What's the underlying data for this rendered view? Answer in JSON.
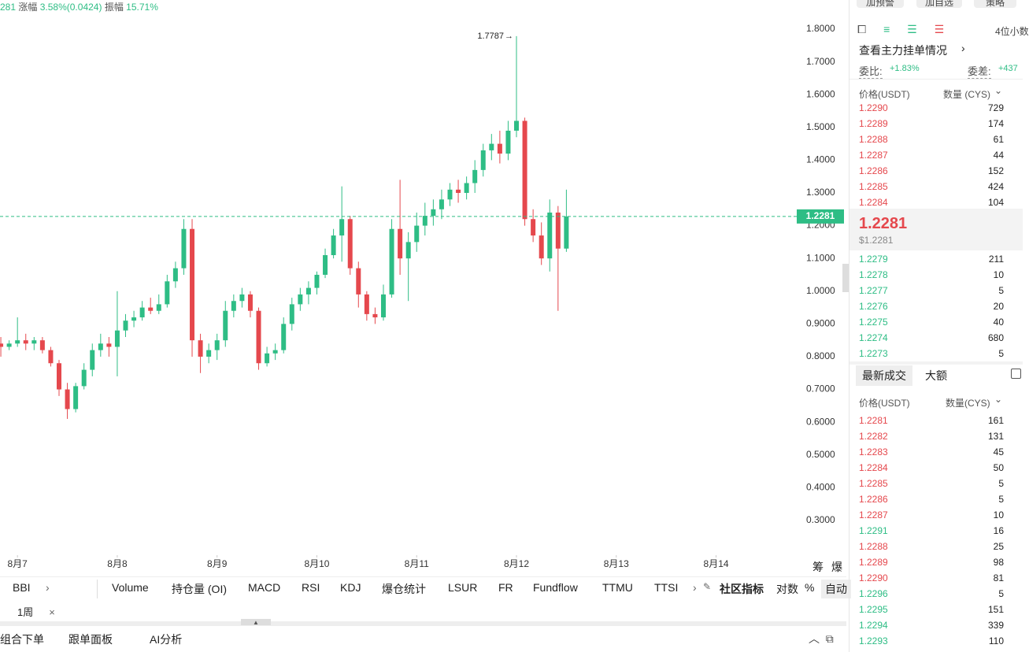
{
  "header": {
    "price_tail": "281",
    "change_label": "涨幅",
    "change": "3.58%(0.0424)",
    "amp_label": "振幅",
    "amp": "15.71%"
  },
  "chart_data": {
    "type": "candlestick",
    "up_color": "#2ebd85",
    "down_color": "#e5484d",
    "xlim": [
      -0.1,
      95.7
    ],
    "ylim": [
      0.194,
      1.889
    ],
    "xticks": [
      {
        "value": 2,
        "label": "8月7"
      },
      {
        "value": 14,
        "label": "8月8"
      },
      {
        "value": 26,
        "label": "8月9"
      },
      {
        "value": 38,
        "label": "8月10"
      },
      {
        "value": 50,
        "label": "8月11"
      },
      {
        "value": 62,
        "label": "8月12"
      },
      {
        "value": 74,
        "label": "8月13"
      },
      {
        "value": 86,
        "label": "8月14"
      }
    ],
    "yticks": [
      {
        "value": 1.8,
        "label": "1.8000"
      },
      {
        "value": 1.7,
        "label": "1.7000"
      },
      {
        "value": 1.6,
        "label": "1.6000"
      },
      {
        "value": 1.5,
        "label": "1.5000"
      },
      {
        "value": 1.4,
        "label": "1.4000"
      },
      {
        "value": 1.3,
        "label": "1.3000"
      },
      {
        "value": 1.2,
        "label": "1.2000"
      },
      {
        "value": 1.1,
        "label": "1.1000"
      },
      {
        "value": 1.0,
        "label": "1.0000"
      },
      {
        "value": 0.9,
        "label": "0.9000"
      },
      {
        "value": 0.8,
        "label": "0.8000"
      },
      {
        "value": 0.7,
        "label": "0.7000"
      },
      {
        "value": 0.6,
        "label": "0.6000"
      },
      {
        "value": 0.5,
        "label": "0.5000"
      },
      {
        "value": 0.4,
        "label": "0.4000"
      },
      {
        "value": 0.3,
        "label": "0.3000"
      }
    ],
    "last_price": 1.2281,
    "max_index": 62,
    "ohlc": [
      [
        0.84,
        0.86,
        0.8,
        0.83
      ],
      [
        0.83,
        0.85,
        0.82,
        0.84
      ],
      [
        0.84,
        0.92,
        0.83,
        0.85
      ],
      [
        0.85,
        0.87,
        0.82,
        0.84
      ],
      [
        0.84,
        0.86,
        0.82,
        0.85
      ],
      [
        0.85,
        0.86,
        0.81,
        0.82
      ],
      [
        0.82,
        0.83,
        0.77,
        0.78
      ],
      [
        0.78,
        0.79,
        0.68,
        0.7
      ],
      [
        0.7,
        0.72,
        0.61,
        0.64
      ],
      [
        0.64,
        0.72,
        0.63,
        0.71
      ],
      [
        0.71,
        0.78,
        0.7,
        0.76
      ],
      [
        0.76,
        0.84,
        0.74,
        0.82
      ],
      [
        0.82,
        0.87,
        0.8,
        0.84
      ],
      [
        0.84,
        0.86,
        0.8,
        0.83
      ],
      [
        0.83,
        1.0,
        0.74,
        0.88
      ],
      [
        0.88,
        0.93,
        0.86,
        0.91
      ],
      [
        0.91,
        0.94,
        0.89,
        0.92
      ],
      [
        0.92,
        0.97,
        0.91,
        0.95
      ],
      [
        0.95,
        0.98,
        0.93,
        0.94
      ],
      [
        0.94,
        0.99,
        0.93,
        0.96
      ],
      [
        0.96,
        1.05,
        0.95,
        1.03
      ],
      [
        1.03,
        1.09,
        1.01,
        1.07
      ],
      [
        1.07,
        1.22,
        1.05,
        1.19
      ],
      [
        1.19,
        1.22,
        0.8,
        0.85
      ],
      [
        0.85,
        0.87,
        0.75,
        0.8
      ],
      [
        0.8,
        0.84,
        0.78,
        0.82
      ],
      [
        0.82,
        0.87,
        0.79,
        0.85
      ],
      [
        0.85,
        0.97,
        0.83,
        0.94
      ],
      [
        0.94,
        0.99,
        0.92,
        0.97
      ],
      [
        0.97,
        1.01,
        0.95,
        0.99
      ],
      [
        0.99,
        1.0,
        0.92,
        0.94
      ],
      [
        0.94,
        0.95,
        0.76,
        0.78
      ],
      [
        0.78,
        0.83,
        0.77,
        0.81
      ],
      [
        0.81,
        0.84,
        0.79,
        0.82
      ],
      [
        0.82,
        0.92,
        0.81,
        0.9
      ],
      [
        0.9,
        0.98,
        0.88,
        0.96
      ],
      [
        0.96,
        1.01,
        0.94,
        0.99
      ],
      [
        0.99,
        1.03,
        0.96,
        1.01
      ],
      [
        1.01,
        1.06,
        0.99,
        1.05
      ],
      [
        1.05,
        1.13,
        1.04,
        1.11
      ],
      [
        1.11,
        1.19,
        1.1,
        1.17
      ],
      [
        1.17,
        1.32,
        1.09,
        1.22
      ],
      [
        1.22,
        1.23,
        1.05,
        1.07
      ],
      [
        1.07,
        1.09,
        0.95,
        0.99
      ],
      [
        0.99,
        1.0,
        0.91,
        0.93
      ],
      [
        0.93,
        0.95,
        0.9,
        0.92
      ],
      [
        0.92,
        1.02,
        0.91,
        0.99
      ],
      [
        0.99,
        1.22,
        0.98,
        1.19
      ],
      [
        1.19,
        1.34,
        1.05,
        1.1
      ],
      [
        1.1,
        1.18,
        0.97,
        1.15
      ],
      [
        1.15,
        1.24,
        1.12,
        1.2
      ],
      [
        1.2,
        1.27,
        1.17,
        1.23
      ],
      [
        1.23,
        1.28,
        1.2,
        1.25
      ],
      [
        1.25,
        1.31,
        1.22,
        1.28
      ],
      [
        1.28,
        1.33,
        1.26,
        1.31
      ],
      [
        1.31,
        1.34,
        1.27,
        1.3
      ],
      [
        1.3,
        1.35,
        1.28,
        1.33
      ],
      [
        1.33,
        1.4,
        1.3,
        1.37
      ],
      [
        1.37,
        1.45,
        1.35,
        1.43
      ],
      [
        1.43,
        1.48,
        1.4,
        1.45
      ],
      [
        1.45,
        1.49,
        1.39,
        1.42
      ],
      [
        1.42,
        1.52,
        1.4,
        1.49
      ],
      [
        1.49,
        1.7787,
        1.47,
        1.52
      ],
      [
        1.52,
        1.53,
        1.2,
        1.22
      ],
      [
        1.22,
        1.25,
        1.15,
        1.17
      ],
      [
        1.17,
        1.21,
        1.08,
        1.1
      ],
      [
        1.1,
        1.28,
        1.06,
        1.24
      ],
      [
        1.24,
        1.26,
        0.94,
        1.13
      ],
      [
        1.13,
        1.31,
        1.12,
        1.2281
      ]
    ]
  },
  "chart_side": [
    "筹",
    "爆"
  ],
  "indicator_tabs": [
    "BBI",
    "Volume",
    "持仓量 (OI)",
    "MACD",
    "RSI",
    "KDJ",
    "爆仓统计",
    "LSUR",
    "FR",
    "Fundflow",
    "TTMU",
    "TTSI",
    "社区指标",
    "对数",
    "%",
    "自动"
  ],
  "period_tab": "1周",
  "bottom_tabs": [
    "组合下单",
    "跟单面板",
    "AI分析"
  ],
  "panel": {
    "buttons": [
      "加预警",
      "加自选",
      "策略"
    ],
    "decimals": "4位小数",
    "main_orders": "查看主力挂单情况",
    "ratio_label": "委比:",
    "ratio": "+1.83%",
    "diff_label": "委差:",
    "diff": "+437",
    "price_header": "价格(USDT)",
    "qty_header": "数量 (CYS)",
    "asks": [
      {
        "price": "1.2290",
        "qty": "729"
      },
      {
        "price": "1.2289",
        "qty": "174"
      },
      {
        "price": "1.2288",
        "qty": "61"
      },
      {
        "price": "1.2287",
        "qty": "44"
      },
      {
        "price": "1.2286",
        "qty": "152"
      },
      {
        "price": "1.2285",
        "qty": "424"
      },
      {
        "price": "1.2284",
        "qty": "104"
      }
    ],
    "mid": "1.2281",
    "mid_usd": "$1.2281",
    "bids": [
      {
        "price": "1.2279",
        "qty": "211"
      },
      {
        "price": "1.2278",
        "qty": "10"
      },
      {
        "price": "1.2277",
        "qty": "5"
      },
      {
        "price": "1.2276",
        "qty": "20"
      },
      {
        "price": "1.2275",
        "qty": "40"
      },
      {
        "price": "1.2274",
        "qty": "680"
      },
      {
        "price": "1.2273",
        "qty": "5"
      }
    ],
    "trade_tabs": [
      "最新成交",
      "大额"
    ],
    "trade_price_header": "价格(USDT)",
    "trade_qty_header": "数量(CYS)",
    "trades": [
      {
        "price": "1.2281",
        "qty": "161",
        "color": "#e5484d"
      },
      {
        "price": "1.2282",
        "qty": "131",
        "color": "#e5484d"
      },
      {
        "price": "1.2283",
        "qty": "45",
        "color": "#e5484d"
      },
      {
        "price": "1.2284",
        "qty": "50",
        "color": "#e5484d"
      },
      {
        "price": "1.2285",
        "qty": "5",
        "color": "#e5484d"
      },
      {
        "price": "1.2286",
        "qty": "5",
        "color": "#e5484d"
      },
      {
        "price": "1.2287",
        "qty": "10",
        "color": "#e5484d"
      },
      {
        "price": "1.2291",
        "qty": "16",
        "color": "#2ebd85"
      },
      {
        "price": "1.2288",
        "qty": "25",
        "color": "#e5484d"
      },
      {
        "price": "1.2289",
        "qty": "98",
        "color": "#e5484d"
      },
      {
        "price": "1.2290",
        "qty": "81",
        "color": "#e5484d"
      },
      {
        "price": "1.2296",
        "qty": "5",
        "color": "#2ebd85"
      },
      {
        "price": "1.2295",
        "qty": "151",
        "color": "#2ebd85"
      },
      {
        "price": "1.2294",
        "qty": "339",
        "color": "#2ebd85"
      },
      {
        "price": "1.2293",
        "qty": "110",
        "color": "#2ebd85"
      }
    ]
  }
}
